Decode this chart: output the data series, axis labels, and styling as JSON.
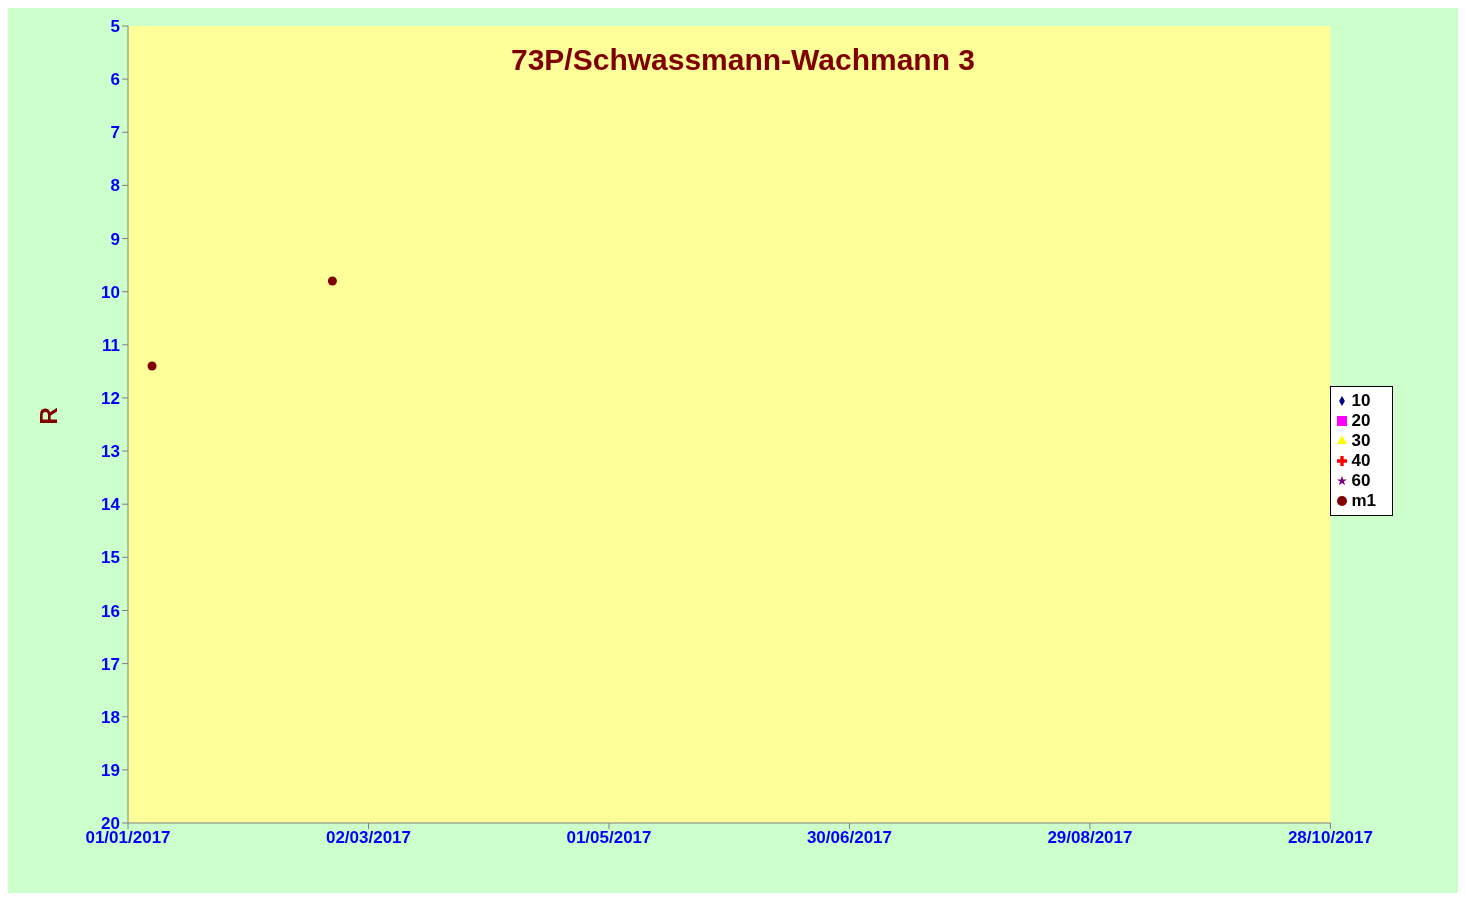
{
  "chart_data": {
    "type": "scatter",
    "title": "73P/Schwassmann-Wachmann 3",
    "ylabel": "R",
    "xlim": [
      "2017-01-01",
      "2017-10-28"
    ],
    "xticks": [
      {
        "value": "2017-01-01",
        "label": "01/01/2017"
      },
      {
        "value": "2017-03-02",
        "label": "02/03/2017"
      },
      {
        "value": "2017-05-01",
        "label": "01/05/2017"
      },
      {
        "value": "2017-06-30",
        "label": "30/06/2017"
      },
      {
        "value": "2017-08-29",
        "label": "29/08/2017"
      },
      {
        "value": "2017-10-28",
        "label": "28/10/2017"
      }
    ],
    "ylim": [
      20,
      5
    ],
    "yticks": [
      5,
      6,
      7,
      8,
      9,
      10,
      11,
      12,
      13,
      14,
      15,
      16,
      17,
      18,
      19,
      20
    ],
    "grid": false,
    "legend": "right",
    "series": [
      {
        "name": "10",
        "color": "#000080",
        "marker": "diamond"
      },
      {
        "name": "20",
        "color": "#ff00ff",
        "marker": "square"
      },
      {
        "name": "30",
        "color": "#ffff00",
        "marker": "triangle"
      },
      {
        "name": "40",
        "color": "#ff0000",
        "marker": "cross"
      },
      {
        "name": "60",
        "color": "#800080",
        "marker": "star"
      },
      {
        "name": "m1",
        "color": "#800000",
        "marker": "circle",
        "x": [
          "2017-01-07",
          "2017-02-21"
        ],
        "values": [
          11.4,
          9.8
        ]
      }
    ]
  }
}
